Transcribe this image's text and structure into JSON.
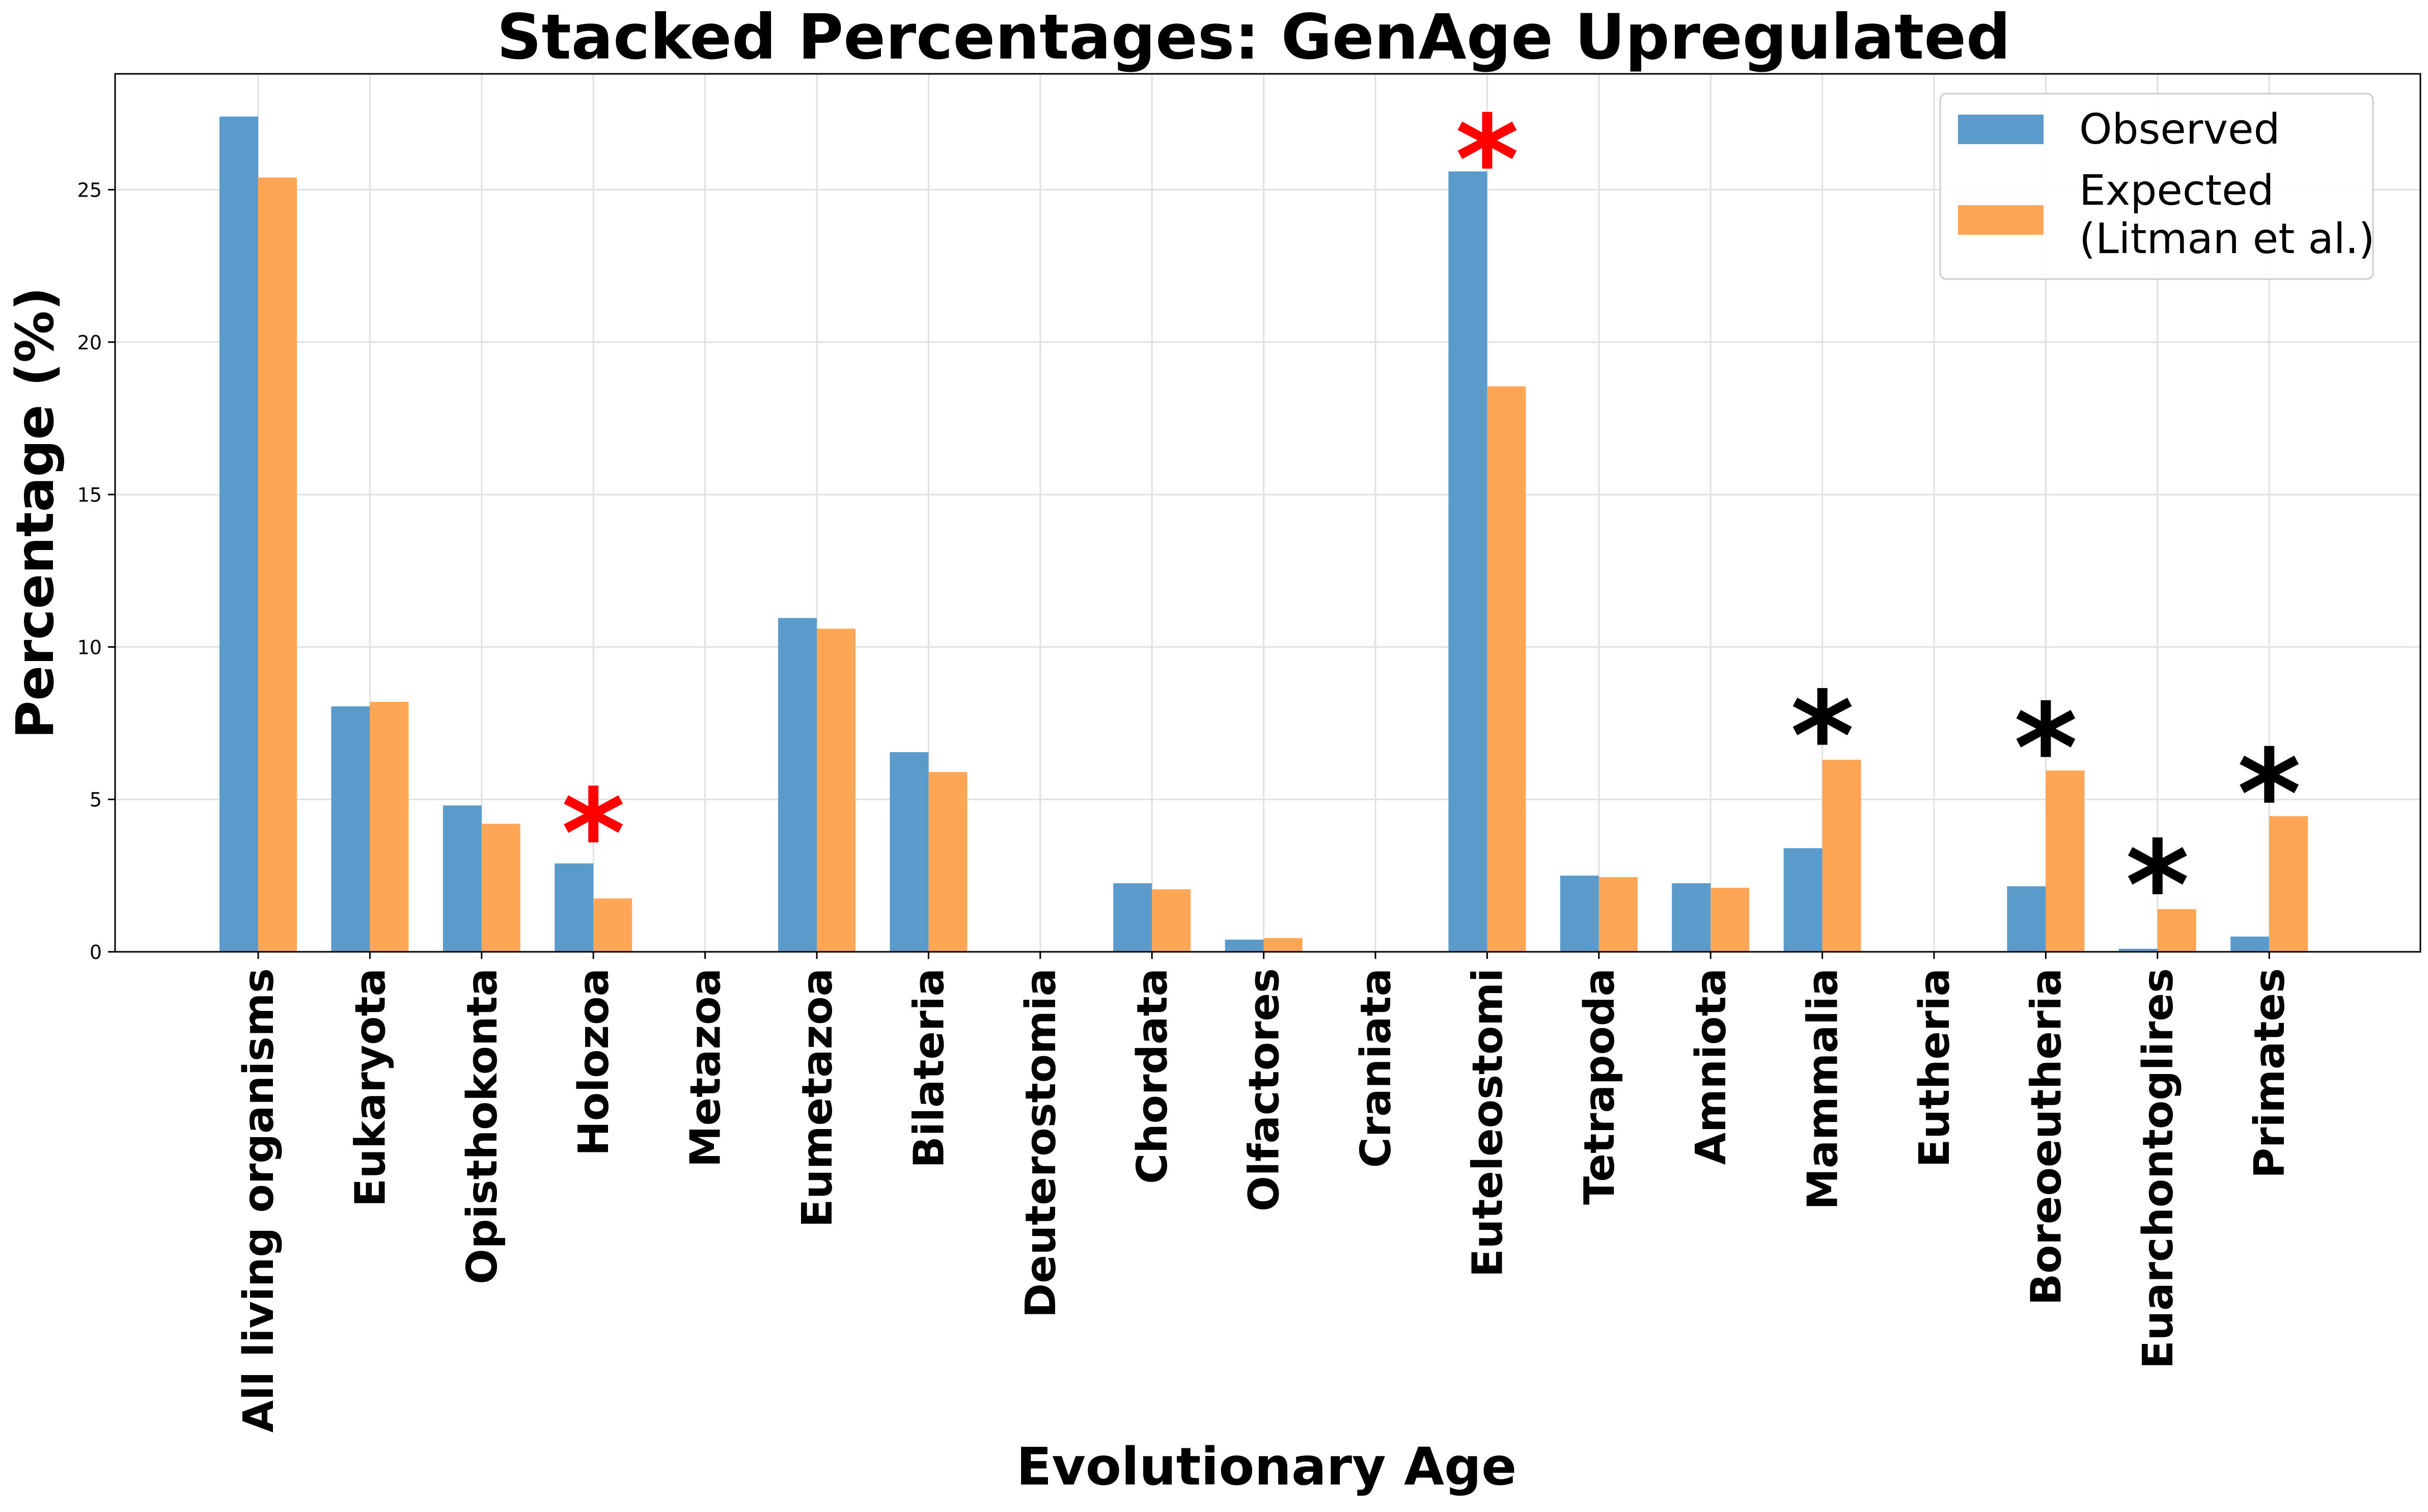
{
  "chart_data": {
    "type": "bar",
    "title": "Stacked Percentages: GenAge Upregulated",
    "xlabel": "Evolutionary Age",
    "ylabel": "Percentage (%)",
    "ylim": [
      0,
      28.8
    ],
    "yticks": [
      0,
      5,
      10,
      15,
      20,
      25
    ],
    "grid": true,
    "legend_position": "top-right",
    "categories": [
      "All living organisms",
      "Eukaryota",
      "Opisthokonta",
      "Holozoa",
      "Metazoa",
      "Eumetazoa",
      "Bilateria",
      "Deuterostomia",
      "Chordata",
      "Olfactores",
      "Craniata",
      "Euteleostomi",
      "Tetrapoda",
      "Amniota",
      "Mammalia",
      "Eutheria",
      "Boreoeutheria",
      "Euarchontoglires",
      "Primates"
    ],
    "series": [
      {
        "name": "Observed",
        "color": "#5a9bcc",
        "values": [
          27.4,
          8.05,
          4.8,
          2.9,
          0,
          10.95,
          6.55,
          0,
          2.25,
          0.4,
          0,
          25.6,
          2.5,
          2.25,
          3.4,
          0,
          2.15,
          0.1,
          0.5
        ]
      },
      {
        "name": "Expected\n(Litman et al.)",
        "color": "#fda655",
        "values": [
          25.4,
          8.2,
          4.2,
          1.75,
          0,
          10.6,
          5.9,
          0,
          2.05,
          0.45,
          0,
          18.55,
          2.45,
          2.1,
          6.3,
          0,
          5.95,
          1.4,
          4.45
        ]
      }
    ],
    "annotations": [
      {
        "category": "Holozoa",
        "text": "*",
        "color": "#ff0000",
        "y": 5.4
      },
      {
        "category": "Euteleostomi",
        "text": "*",
        "color": "#ff0000",
        "y": 27.5
      },
      {
        "category": "Mammalia",
        "text": "*",
        "color": "#000000",
        "y": 8.6
      },
      {
        "category": "Boreoeutheria",
        "text": "*",
        "color": "#000000",
        "y": 8.2
      },
      {
        "category": "Euarchontoglires",
        "text": "*",
        "color": "#000000",
        "y": 3.7
      },
      {
        "category": "Primates",
        "text": "*",
        "color": "#000000",
        "y": 6.7
      }
    ]
  }
}
